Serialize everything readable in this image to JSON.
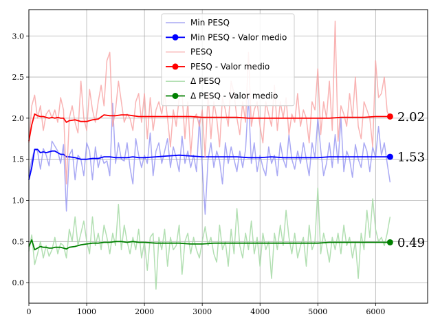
{
  "chart_data": {
    "type": "line",
    "title": "",
    "xlabel": "",
    "ylabel": "",
    "xlim": [
      0,
      6900
    ],
    "ylim": [
      -0.25,
      3.32
    ],
    "grid": true,
    "legend_position": "top-center",
    "x_ticks": [
      "0",
      "1000",
      "2000",
      "3000",
      "4000",
      "5000",
      "6000"
    ],
    "y_ticks": [
      "0.0",
      "0.5",
      "1.0",
      "1.5",
      "2.0",
      "2.5",
      "3.0"
    ],
    "end_labels": [
      {
        "text": "2.02",
        "value": 2.02,
        "color": "#ff0000"
      },
      {
        "text": "1.53",
        "value": 1.53,
        "color": "#0000ff"
      },
      {
        "text": "0.49",
        "value": 0.49,
        "color": "#008000"
      }
    ],
    "series": [
      {
        "name": "Min PESQ",
        "color": "#8c8cf0",
        "opacity": 0.75,
        "x": [
          0,
          50,
          100,
          150,
          200,
          250,
          300,
          350,
          400,
          450,
          500,
          550,
          600,
          650,
          700,
          750,
          800,
          850,
          900,
          950,
          1000,
          1050,
          1100,
          1150,
          1200,
          1250,
          1300,
          1350,
          1400,
          1450,
          1500,
          1550,
          1600,
          1650,
          1700,
          1750,
          1800,
          1850,
          1900,
          1950,
          2000,
          2050,
          2100,
          2150,
          2200,
          2250,
          2300,
          2350,
          2400,
          2450,
          2500,
          2550,
          2600,
          2650,
          2700,
          2750,
          2800,
          2850,
          2900,
          2950,
          3000,
          3050,
          3100,
          3150,
          3200,
          3250,
          3300,
          3350,
          3400,
          3450,
          3500,
          3550,
          3600,
          3650,
          3700,
          3750,
          3800,
          3850,
          3900,
          3950,
          4000,
          4050,
          4100,
          4150,
          4200,
          4250,
          4300,
          4350,
          4400,
          4450,
          4500,
          4550,
          4600,
          4650,
          4700,
          4750,
          4800,
          4850,
          4900,
          4950,
          5000,
          5050,
          5100,
          5150,
          5200,
          5250,
          5300,
          5350,
          5400,
          5450,
          5500,
          5550,
          5600,
          5650,
          5700,
          5750,
          5800,
          5850,
          5900,
          5950,
          6000,
          6050,
          6100,
          6150,
          6200,
          6250
        ],
        "values": [
          1.3,
          1.5,
          1.62,
          1.6,
          1.38,
          1.63,
          1.55,
          1.42,
          1.72,
          1.66,
          1.6,
          1.45,
          1.68,
          0.87,
          1.55,
          1.62,
          1.25,
          1.55,
          1.5,
          1.3,
          1.7,
          1.6,
          1.25,
          1.65,
          1.4,
          1.55,
          1.45,
          1.48,
          1.3,
          2.18,
          1.45,
          1.7,
          1.5,
          1.48,
          1.7,
          1.4,
          1.2,
          1.75,
          1.55,
          1.4,
          1.55,
          1.45,
          1.82,
          1.3,
          1.6,
          1.7,
          1.45,
          1.6,
          1.75,
          1.4,
          1.65,
          1.52,
          1.35,
          1.78,
          1.45,
          1.6,
          1.4,
          1.55,
          1.35,
          1.98,
          1.4,
          0.83,
          1.5,
          1.7,
          1.4,
          1.6,
          1.48,
          1.2,
          1.7,
          1.45,
          1.65,
          1.5,
          1.35,
          1.6,
          1.4,
          1.62,
          2.25,
          1.45,
          1.7,
          1.35,
          1.55,
          1.4,
          1.3,
          1.65,
          1.45,
          1.55,
          1.3,
          1.7,
          1.5,
          1.4,
          1.8,
          1.5,
          1.38,
          1.6,
          1.45,
          1.7,
          1.5,
          1.3,
          1.7,
          1.52,
          2.0,
          1.62,
          1.3,
          1.45,
          1.7,
          1.4,
          1.8,
          1.45,
          2.0,
          1.35,
          1.6,
          1.5,
          1.28,
          1.68,
          1.5,
          1.4,
          1.7,
          1.6,
          1.35,
          1.65,
          1.52,
          1.9,
          1.55,
          1.7,
          1.45,
          1.22
        ]
      },
      {
        "name": "Min PESQ - Valor medio",
        "color": "#0000ff",
        "opacity": 1,
        "marker_end": true,
        "x": [
          0,
          50,
          100,
          150,
          200,
          250,
          300,
          350,
          400,
          450,
          500,
          550,
          600,
          650,
          700,
          800,
          900,
          1000,
          1100,
          1200,
          1300,
          1400,
          1500,
          1600,
          1700,
          1800,
          1900,
          2000,
          2200,
          2400,
          2600,
          2800,
          3000,
          3200,
          3400,
          3600,
          3800,
          4000,
          4200,
          4400,
          4600,
          4800,
          5000,
          5200,
          5400,
          5600,
          5800,
          6000,
          6250
        ],
        "values": [
          1.25,
          1.4,
          1.62,
          1.62,
          1.58,
          1.59,
          1.58,
          1.59,
          1.6,
          1.6,
          1.58,
          1.56,
          1.56,
          1.53,
          1.53,
          1.52,
          1.5,
          1.5,
          1.51,
          1.51,
          1.53,
          1.53,
          1.52,
          1.52,
          1.52,
          1.53,
          1.52,
          1.52,
          1.53,
          1.54,
          1.55,
          1.54,
          1.53,
          1.53,
          1.53,
          1.53,
          1.52,
          1.52,
          1.53,
          1.52,
          1.52,
          1.52,
          1.52,
          1.53,
          1.53,
          1.53,
          1.53,
          1.53,
          1.53
        ]
      },
      {
        "name": "PESQ",
        "color": "#f7a0a0",
        "opacity": 0.8,
        "x": [
          0,
          50,
          100,
          150,
          200,
          250,
          300,
          350,
          400,
          450,
          500,
          550,
          600,
          650,
          700,
          750,
          800,
          850,
          900,
          950,
          1000,
          1050,
          1100,
          1150,
          1200,
          1250,
          1300,
          1350,
          1400,
          1450,
          1500,
          1550,
          1600,
          1650,
          1700,
          1750,
          1800,
          1850,
          1900,
          1950,
          2000,
          2050,
          2100,
          2150,
          2200,
          2250,
          2300,
          2350,
          2400,
          2450,
          2500,
          2550,
          2600,
          2650,
          2700,
          2750,
          2800,
          2850,
          2900,
          2950,
          3000,
          3050,
          3100,
          3150,
          3200,
          3250,
          3300,
          3350,
          3400,
          3450,
          3500,
          3550,
          3600,
          3650,
          3700,
          3750,
          3800,
          3850,
          3900,
          3950,
          4000,
          4050,
          4100,
          4150,
          4200,
          4250,
          4300,
          4350,
          4400,
          4450,
          4500,
          4550,
          4600,
          4650,
          4700,
          4750,
          4800,
          4850,
          4900,
          4950,
          5000,
          5050,
          5100,
          5150,
          5200,
          5250,
          5300,
          5350,
          5400,
          5450,
          5500,
          5550,
          5600,
          5650,
          5700,
          5750,
          5800,
          5850,
          5900,
          5950,
          6000,
          6050,
          6100,
          6150,
          6200,
          6250
        ],
        "values": [
          1.7,
          2.15,
          2.28,
          2.0,
          2.15,
          1.85,
          2.05,
          2.1,
          2.0,
          2.1,
          1.95,
          2.25,
          2.1,
          1.2,
          2.0,
          2.15,
          1.95,
          1.82,
          2.45,
          2.0,
          1.85,
          2.35,
          2.1,
          1.95,
          2.2,
          2.4,
          2.15,
          2.7,
          2.8,
          1.9,
          2.1,
          2.45,
          2.2,
          1.95,
          2.05,
          2.0,
          1.85,
          2.2,
          2.3,
          1.95,
          2.3,
          1.75,
          2.25,
          1.85,
          2.1,
          2.2,
          2.05,
          2.3,
          2.0,
          1.65,
          2.1,
          1.9,
          2.25,
          2.3,
          1.75,
          2.2,
          1.55,
          2.0,
          2.05,
          1.9,
          2.1,
          1.52,
          2.3,
          1.75,
          2.2,
          2.0,
          1.65,
          2.25,
          2.1,
          1.9,
          2.45,
          2.3,
          2.0,
          1.8,
          2.2,
          1.95,
          2.8,
          1.9,
          2.1,
          2.2,
          1.9,
          1.7,
          2.2,
          2.05,
          1.9,
          2.4,
          1.85,
          2.2,
          2.0,
          2.25,
          1.8,
          2.05,
          1.95,
          2.3,
          1.9,
          2.1,
          2.0,
          1.7,
          2.2,
          2.1,
          2.6,
          1.8,
          2.2,
          2.0,
          2.45,
          1.85,
          3.18,
          1.72,
          2.15,
          2.05,
          1.9,
          2.3,
          2.0,
          2.5,
          1.9,
          1.75,
          2.2,
          2.1,
          2.0,
          1.65,
          2.7,
          2.25,
          2.3,
          2.5,
          2.08,
          2.0
        ]
      },
      {
        "name": "PESQ - Valor medio",
        "color": "#ff0000",
        "opacity": 1,
        "marker_end": true,
        "x": [
          0,
          50,
          100,
          150,
          200,
          250,
          300,
          350,
          400,
          450,
          500,
          550,
          600,
          650,
          700,
          800,
          900,
          1000,
          1100,
          1200,
          1300,
          1400,
          1500,
          1600,
          1700,
          1800,
          1900,
          2000,
          2200,
          2400,
          2600,
          2800,
          3000,
          3200,
          3400,
          3600,
          3800,
          4000,
          4200,
          4400,
          4600,
          4800,
          5000,
          5200,
          5400,
          5600,
          5800,
          6000,
          6250
        ],
        "values": [
          1.72,
          1.92,
          2.05,
          2.03,
          2.02,
          2.02,
          2.01,
          2.0,
          2.01,
          2.0,
          2.01,
          2.0,
          2.0,
          1.95,
          1.97,
          1.98,
          1.96,
          1.96,
          1.98,
          1.99,
          2.04,
          2.03,
          2.03,
          2.04,
          2.04,
          2.03,
          2.02,
          2.02,
          2.02,
          2.02,
          2.02,
          2.02,
          2.01,
          2.01,
          2.01,
          2.01,
          2.0,
          2.0,
          2.0,
          2.0,
          2.0,
          2.0,
          2.0,
          2.0,
          2.01,
          2.01,
          2.01,
          2.02,
          2.02
        ]
      },
      {
        "name": "Δ PESQ",
        "color": "#a4d9a4",
        "opacity": 0.85,
        "x": [
          0,
          50,
          100,
          150,
          200,
          250,
          300,
          350,
          400,
          450,
          500,
          550,
          600,
          650,
          700,
          750,
          800,
          850,
          900,
          950,
          1000,
          1050,
          1100,
          1150,
          1200,
          1250,
          1300,
          1350,
          1400,
          1450,
          1500,
          1550,
          1600,
          1650,
          1700,
          1750,
          1800,
          1850,
          1900,
          1950,
          2000,
          2050,
          2100,
          2150,
          2200,
          2250,
          2300,
          2350,
          2400,
          2450,
          2500,
          2550,
          2600,
          2650,
          2700,
          2750,
          2800,
          2850,
          2900,
          2950,
          3000,
          3050,
          3100,
          3150,
          3200,
          3250,
          3300,
          3350,
          3400,
          3450,
          3500,
          3550,
          3600,
          3650,
          3700,
          3750,
          3800,
          3850,
          3900,
          3950,
          4000,
          4050,
          4100,
          4150,
          4200,
          4250,
          4300,
          4350,
          4400,
          4450,
          4500,
          4550,
          4600,
          4650,
          4700,
          4750,
          4800,
          4850,
          4900,
          4950,
          5000,
          5050,
          5100,
          5150,
          5200,
          5250,
          5300,
          5350,
          5400,
          5450,
          5500,
          5550,
          5600,
          5650,
          5700,
          5750,
          5800,
          5850,
          5900,
          5950,
          6000,
          6050,
          6100,
          6150,
          6200,
          6250
        ],
        "values": [
          0.38,
          0.58,
          0.22,
          0.35,
          0.5,
          0.3,
          0.45,
          0.32,
          0.4,
          0.55,
          0.35,
          0.48,
          0.45,
          0.3,
          0.65,
          0.5,
          0.8,
          0.45,
          0.6,
          0.75,
          0.5,
          0.35,
          0.8,
          0.45,
          0.6,
          0.4,
          0.7,
          0.55,
          0.35,
          0.6,
          0.45,
          0.95,
          0.4,
          0.7,
          0.5,
          0.35,
          0.55,
          0.4,
          0.65,
          0.3,
          0.5,
          0.15,
          0.55,
          0.6,
          -0.08,
          0.55,
          0.4,
          0.65,
          0.2,
          0.55,
          0.4,
          0.45,
          0.7,
          0.1,
          0.5,
          0.6,
          0.35,
          0.55,
          0.4,
          0.3,
          0.5,
          0.68,
          0.45,
          0.55,
          0.35,
          0.25,
          0.7,
          0.4,
          0.5,
          0.2,
          0.65,
          0.35,
          0.9,
          0.45,
          0.3,
          0.6,
          0.4,
          0.75,
          0.35,
          0.55,
          0.2,
          0.6,
          0.4,
          0.5,
          0.05,
          0.6,
          0.4,
          0.7,
          0.45,
          0.88,
          0.55,
          0.35,
          0.6,
          0.3,
          0.45,
          0.55,
          0.2,
          0.7,
          0.4,
          0.5,
          1.15,
          0.35,
          0.6,
          0.45,
          0.25,
          0.55,
          0.4,
          0.6,
          0.35,
          0.7,
          0.45,
          0.55,
          0.3,
          0.5,
          0.05,
          0.6,
          0.4,
          0.88,
          0.55,
          1.02,
          0.65,
          0.5,
          0.55,
          0.45,
          0.6,
          0.8
        ]
      },
      {
        "name": "Δ PESQ - Valor medio",
        "color": "#008000",
        "opacity": 1,
        "marker_end": true,
        "x": [
          0,
          50,
          100,
          150,
          200,
          250,
          300,
          350,
          400,
          450,
          500,
          550,
          600,
          650,
          700,
          800,
          900,
          1000,
          1100,
          1200,
          1300,
          1400,
          1500,
          1600,
          1700,
          1800,
          1900,
          2000,
          2200,
          2400,
          2600,
          2800,
          3000,
          3200,
          3400,
          3600,
          3800,
          4000,
          4200,
          4400,
          4600,
          4800,
          5000,
          5200,
          5400,
          5600,
          5800,
          6000,
          6250
        ],
        "values": [
          0.44,
          0.52,
          0.4,
          0.42,
          0.44,
          0.43,
          0.43,
          0.42,
          0.42,
          0.43,
          0.43,
          0.43,
          0.42,
          0.41,
          0.43,
          0.44,
          0.46,
          0.47,
          0.48,
          0.48,
          0.49,
          0.49,
          0.5,
          0.5,
          0.49,
          0.5,
          0.49,
          0.49,
          0.48,
          0.48,
          0.48,
          0.47,
          0.47,
          0.48,
          0.48,
          0.48,
          0.48,
          0.48,
          0.48,
          0.48,
          0.48,
          0.48,
          0.48,
          0.49,
          0.49,
          0.49,
          0.49,
          0.49,
          0.49
        ]
      }
    ]
  }
}
